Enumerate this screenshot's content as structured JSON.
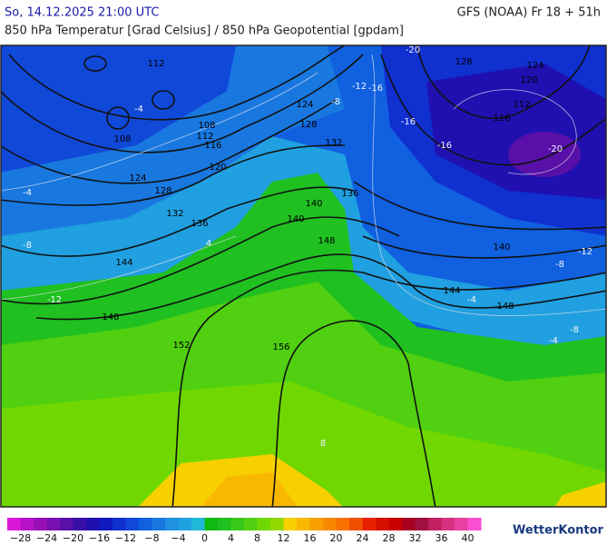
{
  "header": {
    "datetime": "So, 14.12.2025 21:00 UTC",
    "model": "GFS (NOAA) Fr 18 + 51h",
    "subtitle": "850 hPa Temperatur [Grad Celsius] / 850 hPa Geopotential [gpdam]"
  },
  "legend": {
    "range": [
      -30,
      42
    ],
    "colors": [
      "#d81ad8",
      "#b810c8",
      "#9810b8",
      "#7810b0",
      "#5810a8",
      "#3810a8",
      "#2010b0",
      "#1018c0",
      "#1030d0",
      "#1048d8",
      "#1060e0",
      "#1878e0",
      "#2090e0",
      "#20a0e0",
      "#20b8d8",
      "#10b810",
      "#20c020",
      "#38c818",
      "#50d010",
      "#70d800",
      "#90d800",
      "#f8d000",
      "#f8b800",
      "#f8a000",
      "#f88800",
      "#f87000",
      "#f05000",
      "#e82000",
      "#d81000",
      "#c80000",
      "#a80020",
      "#a01040",
      "#c02060",
      "#d83080",
      "#e840a0",
      "#f850d0"
    ],
    "ticks": [
      {
        "value": -28,
        "label": "−28"
      },
      {
        "value": -24,
        "label": "−24"
      },
      {
        "value": -20,
        "label": "−20"
      },
      {
        "value": -16,
        "label": "−16"
      },
      {
        "value": -12,
        "label": "−12"
      },
      {
        "value": -8,
        "label": "−8"
      },
      {
        "value": -4,
        "label": "−4"
      },
      0,
      4,
      8,
      12,
      16,
      20,
      24,
      28,
      32,
      36,
      40
    ]
  },
  "map": {
    "geopotential_labels": [
      "112",
      "108",
      "108",
      "112",
      "116",
      "120",
      "124",
      "128",
      "132",
      "136",
      "140",
      "144",
      "148",
      "152",
      "156",
      "124",
      "128",
      "132",
      "136",
      "140",
      "148",
      "128",
      "124",
      "120",
      "112",
      "116",
      "140",
      "144",
      "148"
    ],
    "temperature_labels": [
      "-20",
      "-16",
      "-12",
      "-8",
      "-4",
      "-16",
      "-20",
      "-16",
      "-12",
      "-8",
      "-4",
      "-8",
      "-4",
      "4",
      "8",
      "-4",
      "-8",
      "-12"
    ]
  },
  "brand": "WetterKontor"
}
